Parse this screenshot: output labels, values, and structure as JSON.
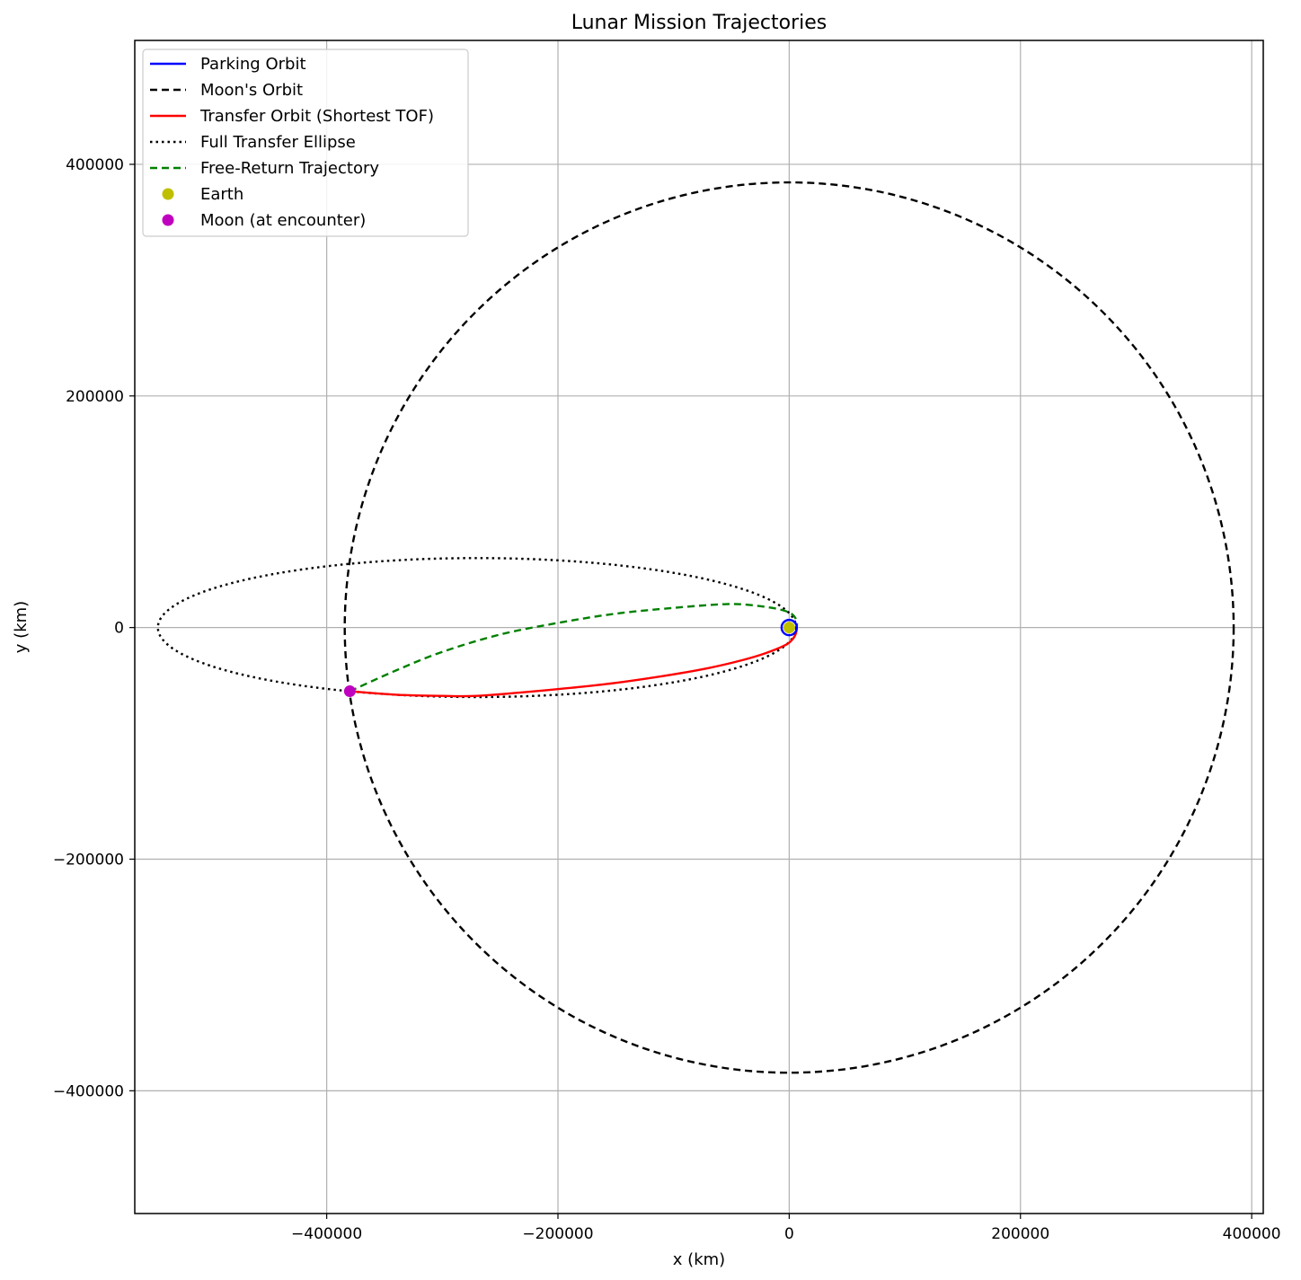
{
  "chart_data": {
    "type": "line",
    "title": "Lunar Mission Trajectories",
    "xlabel": "x (km)",
    "ylabel": "y (km)",
    "xlim": [
      -566000,
      410000
    ],
    "ylim": [
      -506000,
      507000
    ],
    "xticks": [
      -400000,
      -200000,
      0,
      200000,
      400000
    ],
    "yticks": [
      -400000,
      -200000,
      0,
      200000,
      400000
    ],
    "grid": true,
    "legend_position": "upper left",
    "series": [
      {
        "name": "Parking Orbit",
        "style": "solid",
        "color": "#0000ff",
        "kind": "circle",
        "center": [
          0,
          0
        ],
        "radius": 6600
      },
      {
        "name": "Moon's Orbit",
        "style": "dashed",
        "color": "#000000",
        "kind": "circle",
        "center": [
          0,
          0
        ],
        "radius": 384400
      },
      {
        "name": "Transfer Orbit (Shortest TOF)",
        "style": "solid",
        "color": "#ff0000",
        "kind": "path",
        "points": [
          [
            6600,
            0
          ],
          [
            5800,
            -5000
          ],
          [
            3000,
            -10000
          ],
          [
            -3000,
            -15000
          ],
          [
            -20000,
            -22000
          ],
          [
            -40000,
            -28000
          ],
          [
            -70000,
            -35000
          ],
          [
            -110000,
            -42000
          ],
          [
            -160000,
            -49000
          ],
          [
            -220000,
            -55000
          ],
          [
            -270000,
            -59000
          ],
          [
            -300000,
            -59000
          ],
          [
            -340000,
            -58000
          ],
          [
            -380000,
            -55000
          ]
        ]
      },
      {
        "name": "Full Transfer Ellipse",
        "style": "dotted",
        "color": "#000000",
        "kind": "ellipse",
        "center": [
          -270000,
          0
        ],
        "semi_axes": [
          276000,
          60000
        ]
      },
      {
        "name": "Free-Return Trajectory",
        "style": "dashed",
        "color": "#008000",
        "kind": "path",
        "points": [
          [
            -380000,
            -55000
          ],
          [
            -340000,
            -37000
          ],
          [
            -300000,
            -21000
          ],
          [
            -250000,
            -6000
          ],
          [
            -200000,
            4000
          ],
          [
            -150000,
            12000
          ],
          [
            -100000,
            17000
          ],
          [
            -60000,
            20000
          ],
          [
            -40000,
            20000
          ],
          [
            -15000,
            17000
          ],
          [
            0,
            13000
          ],
          [
            6000,
            7000
          ],
          [
            6600,
            0
          ]
        ]
      },
      {
        "name": "Earth",
        "style": "marker",
        "color": "#bfbf00",
        "kind": "point",
        "x": 0,
        "y": 0
      },
      {
        "name": "Moon (at encounter)",
        "style": "marker",
        "color": "#bf00bf",
        "kind": "point",
        "x": -380000,
        "y": -55000
      }
    ]
  }
}
